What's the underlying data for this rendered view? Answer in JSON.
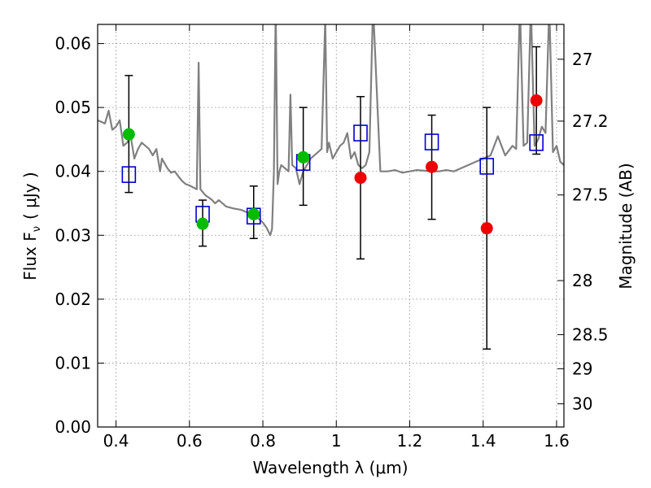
{
  "chart_data": {
    "type": "scatter",
    "xlabel": "Wavelength  λ (μm)",
    "ylabel": "Flux  F",
    "ylabel_sub": "ν",
    "ylabel_units": "( μJy )",
    "y2label": "Magnitude (AB)",
    "xlim": [
      0.35,
      1.62
    ],
    "ylim": [
      0.0,
      0.063
    ],
    "grid": true,
    "x_ticks": [
      {
        "value": 0.4,
        "label": "0.4"
      },
      {
        "value": 0.6,
        "label": "0.6"
      },
      {
        "value": 0.8,
        "label": "0.8"
      },
      {
        "value": 1.0,
        "label": "1"
      },
      {
        "value": 1.2,
        "label": "1.2"
      },
      {
        "value": 1.4,
        "label": "1.4"
      },
      {
        "value": 1.6,
        "label": "1.6"
      }
    ],
    "y_ticks": [
      {
        "value": 0.0,
        "label": "0.00"
      },
      {
        "value": 0.01,
        "label": "0.01"
      },
      {
        "value": 0.02,
        "label": "0.02"
      },
      {
        "value": 0.03,
        "label": "0.03"
      },
      {
        "value": 0.04,
        "label": "0.04"
      },
      {
        "value": 0.05,
        "label": "0.05"
      },
      {
        "value": 0.06,
        "label": "0.06"
      }
    ],
    "y2_ticks": [
      {
        "mag": 27.0,
        "label": "27"
      },
      {
        "mag": 27.2,
        "label": "27.2"
      },
      {
        "mag": 27.5,
        "label": "27.5"
      },
      {
        "mag": 28.0,
        "label": "28"
      },
      {
        "mag": 28.5,
        "label": "28.5"
      },
      {
        "mag": 29.0,
        "label": "29"
      },
      {
        "mag": 30.0,
        "label": "30"
      }
    ],
    "colors": {
      "spectrum": "#808080",
      "model": "#0000cc",
      "green": "#00bb00",
      "red": "#ee0000",
      "errorbar": "#000000",
      "grid": "#888888"
    },
    "spectrum": {
      "x": [
        0.35,
        0.37,
        0.38,
        0.39,
        0.4,
        0.41,
        0.42,
        0.43,
        0.44,
        0.45,
        0.46,
        0.47,
        0.48,
        0.49,
        0.5,
        0.51,
        0.52,
        0.525,
        0.53,
        0.54,
        0.55,
        0.56,
        0.57,
        0.58,
        0.59,
        0.6,
        0.61,
        0.62,
        0.625,
        0.63,
        0.64,
        0.645,
        0.65,
        0.66,
        0.67,
        0.68,
        0.7,
        0.72,
        0.74,
        0.76,
        0.78,
        0.8,
        0.81,
        0.82,
        0.825,
        0.83,
        0.835,
        0.84,
        0.845,
        0.85,
        0.86,
        0.87,
        0.875,
        0.88,
        0.89,
        0.9,
        0.91,
        0.92,
        0.93,
        0.94,
        0.95,
        0.96,
        0.97,
        0.975,
        0.98,
        0.99,
        1.0,
        1.01,
        1.02,
        1.03,
        1.04,
        1.05,
        1.06,
        1.07,
        1.08,
        1.09,
        1.1,
        1.12,
        1.14,
        1.16,
        1.18,
        1.2,
        1.22,
        1.24,
        1.26,
        1.28,
        1.3,
        1.32,
        1.34,
        1.36,
        1.38,
        1.4,
        1.42,
        1.44,
        1.46,
        1.48,
        1.49,
        1.5,
        1.51,
        1.52,
        1.53,
        1.54,
        1.55,
        1.56,
        1.57,
        1.58,
        1.59,
        1.6,
        1.61,
        1.62
      ],
      "y": [
        0.048,
        0.0475,
        0.0495,
        0.0465,
        0.047,
        0.048,
        0.044,
        0.0445,
        0.0455,
        0.042,
        0.0435,
        0.0445,
        0.044,
        0.0435,
        0.0425,
        0.0435,
        0.04,
        0.042,
        0.0415,
        0.0405,
        0.0398,
        0.04,
        0.0392,
        0.0385,
        0.038,
        0.0378,
        0.0375,
        0.0372,
        0.057,
        0.0372,
        0.0365,
        0.0362,
        0.036,
        0.0356,
        0.035,
        0.0355,
        0.0345,
        0.0342,
        0.034,
        0.0335,
        0.033,
        0.032,
        0.0312,
        0.03,
        0.031,
        0.04,
        0.066,
        0.038,
        0.04,
        0.041,
        0.0405,
        0.04,
        0.052,
        0.041,
        0.0405,
        0.038,
        0.04,
        0.041,
        0.042,
        0.0425,
        0.043,
        0.0435,
        0.064,
        0.043,
        0.0445,
        0.042,
        0.043,
        0.044,
        0.0445,
        0.046,
        0.042,
        0.043,
        0.041,
        0.0405,
        0.041,
        0.043,
        0.066,
        0.04,
        0.04,
        0.0402,
        0.0398,
        0.04,
        0.0402,
        0.0401,
        0.04,
        0.04,
        0.0402,
        0.04,
        0.0405,
        0.041,
        0.0415,
        0.042,
        0.0425,
        0.0455,
        0.0425,
        0.044,
        0.0435,
        0.066,
        0.044,
        0.0445,
        0.066,
        0.044,
        0.045,
        0.047,
        0.046,
        0.066,
        0.043,
        0.044,
        0.0415,
        0.041
      ]
    },
    "series": [
      {
        "marker": "open-square",
        "color": "model",
        "x": [
          0.435,
          0.636,
          0.775,
          0.91,
          1.066,
          1.26,
          1.41,
          1.545
        ],
        "y": [
          0.0395,
          0.0333,
          0.033,
          0.0414,
          0.046,
          0.0446,
          0.0408,
          0.0445
        ]
      },
      {
        "marker": "filled-circle",
        "color": "green",
        "x": [
          0.435,
          0.636,
          0.775,
          0.91
        ],
        "y": [
          0.0458,
          0.0318,
          0.0333,
          0.0422
        ],
        "yerr_low": [
          0.0367,
          0.0283,
          0.0295,
          0.0347
        ],
        "yerr_high": [
          0.055,
          0.0355,
          0.0377,
          0.05
        ]
      },
      {
        "marker": "filled-circle",
        "color": "red",
        "x": [
          1.066,
          1.26,
          1.41,
          1.545
        ],
        "y": [
          0.039,
          0.0407,
          0.0311,
          0.0511
        ],
        "yerr_low": [
          0.0263,
          0.0325,
          0.0122,
          0.0427
        ],
        "yerr_high": [
          0.0517,
          0.0488,
          0.05,
          0.0595
        ]
      }
    ]
  }
}
